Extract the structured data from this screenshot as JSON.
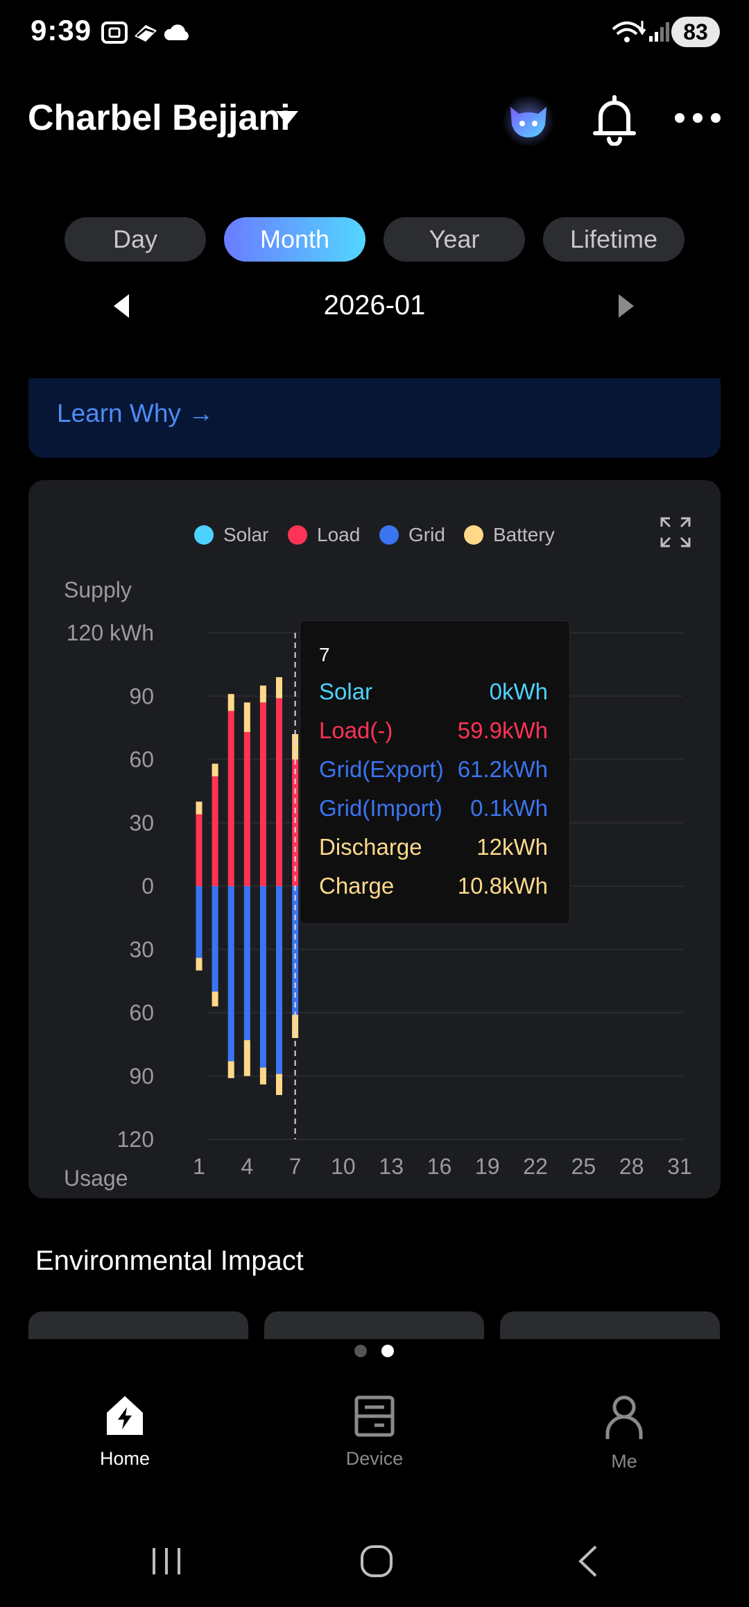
{
  "status_bar": {
    "time": "9:39",
    "battery": "83"
  },
  "header": {
    "user_name": "Charbel Bejjani"
  },
  "tabs": [
    {
      "label": "Day",
      "active": false
    },
    {
      "label": "Month",
      "active": true
    },
    {
      "label": "Year",
      "active": false
    },
    {
      "label": "Lifetime",
      "active": false
    }
  ],
  "period": {
    "label": "2026-01"
  },
  "banner": {
    "link": "Learn Why →"
  },
  "chart": {
    "legend": [
      {
        "name": "Solar",
        "color": "#4dd2ff"
      },
      {
        "name": "Load",
        "color": "#ff3355"
      },
      {
        "name": "Grid",
        "color": "#3b74f0"
      },
      {
        "name": "Battery",
        "color": "#ffd98a"
      }
    ],
    "supply_label": "Supply",
    "usage_label": "Usage",
    "y_tick_labels": [
      "120 kWh",
      "90",
      "60",
      "30",
      "0",
      "30",
      "60",
      "90",
      "120"
    ],
    "x_tick_labels": [
      "1",
      "4",
      "7",
      "10",
      "13",
      "16",
      "19",
      "22",
      "25",
      "28",
      "31"
    ]
  },
  "chart_data": {
    "type": "bar",
    "x": [
      1,
      2,
      3,
      4,
      5,
      6,
      7
    ],
    "ylim": [
      -120,
      120
    ],
    "y_unit": "kWh",
    "series": [
      {
        "name": "Load",
        "values": [
          34,
          52,
          83,
          73,
          87,
          89,
          60
        ]
      },
      {
        "name": "Grid",
        "values": [
          -34,
          -50,
          -83,
          -73,
          -86,
          -89,
          -61
        ]
      },
      {
        "name": "Battery",
        "values": [
          6,
          6,
          8,
          14,
          8,
          10,
          12
        ]
      },
      {
        "name": "Battery",
        "values": [
          -6,
          -7,
          -8,
          -17,
          -8,
          -10,
          -11
        ]
      }
    ],
    "xlim": [
      1,
      31
    ]
  },
  "tooltip": {
    "day": "7",
    "rows": [
      {
        "label": "Solar",
        "value": "0kWh",
        "color": "#4dd2ff"
      },
      {
        "label": "Load(-)",
        "value": "59.9kWh",
        "color": "#ff3355"
      },
      {
        "label": "Grid(Export)",
        "value": "61.2kWh",
        "color": "#3b74f0"
      },
      {
        "label": "Grid(Import)",
        "value": "0.1kWh",
        "color": "#3b74f0"
      },
      {
        "label": "Discharge",
        "value": "12kWh",
        "color": "#ffd98a"
      },
      {
        "label": "Charge",
        "value": "10.8kWh",
        "color": "#ffd98a"
      }
    ]
  },
  "environment": {
    "title": "Environmental Impact"
  },
  "bottom_nav": [
    {
      "label": "Home",
      "icon": "home-bolt-icon",
      "active": true
    },
    {
      "label": "Device",
      "icon": "device-icon",
      "active": false
    },
    {
      "label": "Me",
      "icon": "person-icon",
      "active": false
    }
  ]
}
